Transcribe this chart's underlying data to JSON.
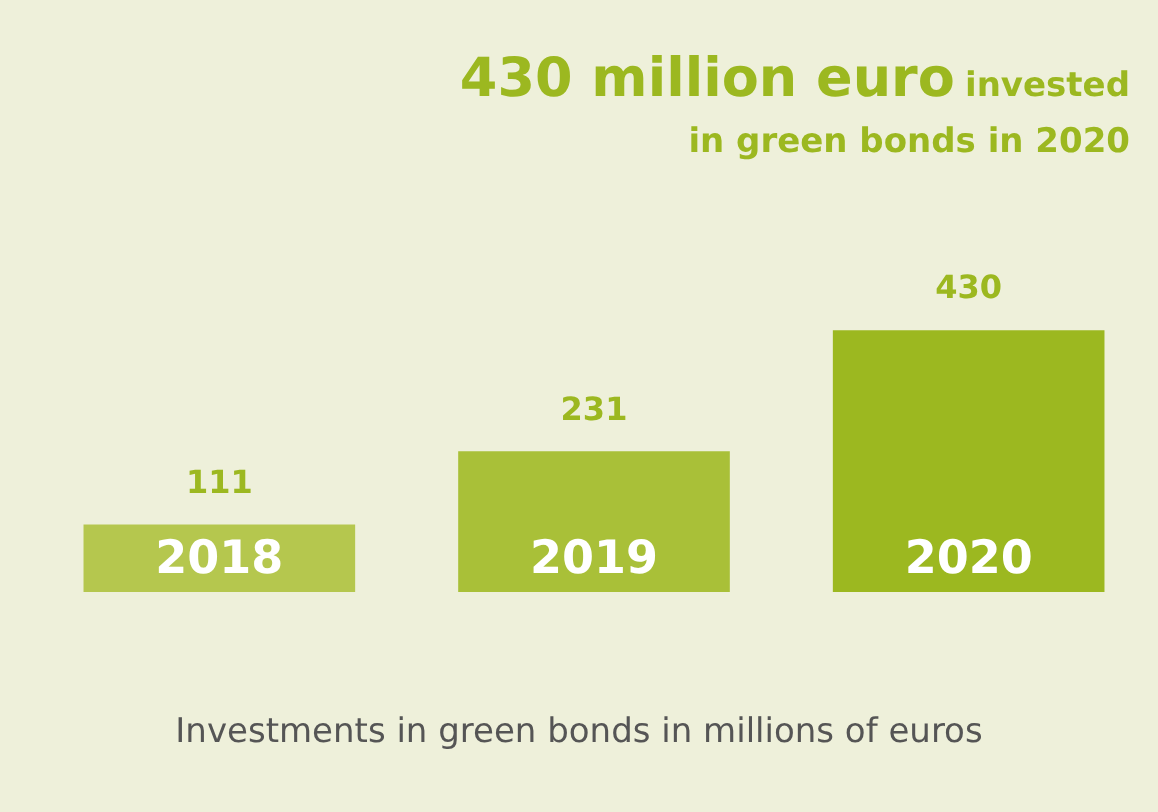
{
  "chart_data": {
    "type": "bar",
    "title": "430 million euro",
    "subtitle": "invested in green bonds in 2020",
    "xlabel": "Investments in green bonds in millions of euros",
    "categories": [
      "2018",
      "2019",
      "2020"
    ],
    "values": [
      111,
      231,
      430
    ],
    "colors": [
      "#b5c74e",
      "#a9c038",
      "#9cb820"
    ],
    "data_labels": true,
    "legend": false
  }
}
